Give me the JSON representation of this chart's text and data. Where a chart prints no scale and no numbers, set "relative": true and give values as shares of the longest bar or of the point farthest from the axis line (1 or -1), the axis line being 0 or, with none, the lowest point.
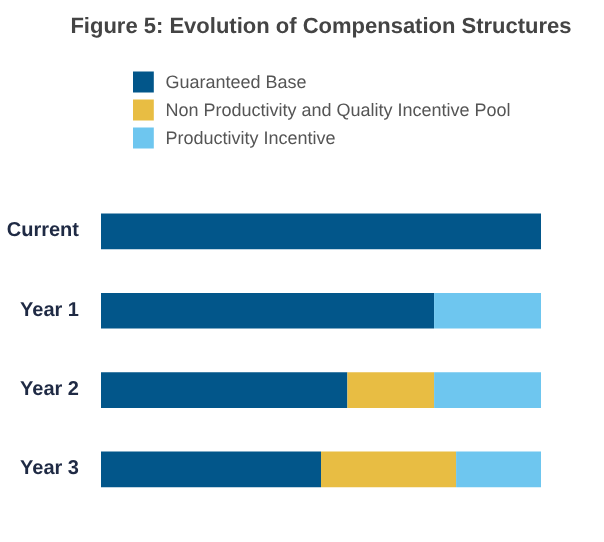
{
  "chart_data": {
    "type": "bar",
    "orientation": "horizontal",
    "stacked": true,
    "relative": true,
    "title": "Figure 5: Evolution of Compensation Structures",
    "categories": [
      "Current",
      "Year 1",
      "Year 2",
      "Year 3"
    ],
    "series": [
      {
        "name": "Guaranteed Base",
        "color": "#02568a",
        "values": [
          1,
          0.757,
          0.56,
          0.5
        ]
      },
      {
        "name": "Non Productivity and Quality Incentive Pool",
        "color": "#e8bd43",
        "values": [
          0,
          0,
          0.197,
          0.307
        ]
      },
      {
        "name": "Productivity Incentive",
        "color": "#6ec6ef",
        "values": [
          0,
          0.243,
          0.243,
          0.193
        ]
      }
    ],
    "legend": "top",
    "grid": false
  }
}
